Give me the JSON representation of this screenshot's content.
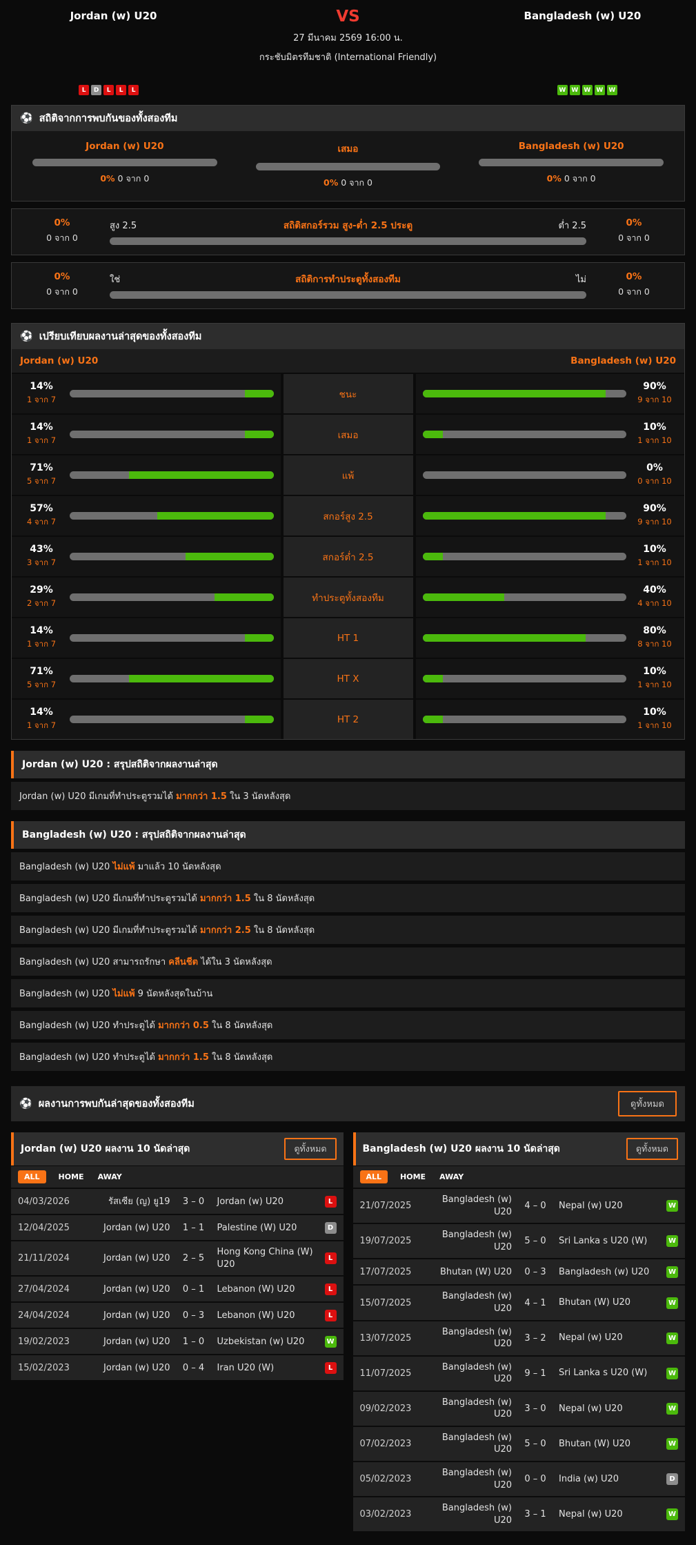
{
  "colors": {
    "accent": "#f97316",
    "win_green": "#4bb90c",
    "lose_red": "#dc1010",
    "draw_gray": "#8d8d8d",
    "vs_red": "#ef3b30",
    "bar_track_gray": "#6f6f6f"
  },
  "header": {
    "home_team": "Jordan (w) U20",
    "away_team": "Bangladesh (w) U20",
    "vs_label": "VS",
    "datetime": "27 มีนาคม 2569 16:00 น.",
    "competition": "กระชับมิตรทีมชาติ (International Friendly)",
    "home_form": [
      "L",
      "D",
      "L",
      "L",
      "L"
    ],
    "away_form": [
      "W",
      "W",
      "W",
      "W",
      "W"
    ]
  },
  "h2h_stats": {
    "title": "สถิติจากการพบกันของทั้งสองทีม",
    "columns": [
      {
        "label": "Jordan (w) U20",
        "percent": "0%",
        "fraction": "0 จาก 0",
        "fill": 0
      },
      {
        "label": "เสมอ",
        "percent": "0%",
        "fraction": "0 จาก 0",
        "fill": 0
      },
      {
        "label": "Bangladesh (w) U20",
        "percent": "0%",
        "fraction": "0 จาก 0",
        "fill": 0
      }
    ],
    "ou_row": {
      "title": "สถิติสกอร์รวม สูง-ต่ำ 2.5 ประตู",
      "left_label": "สูง 2.5",
      "right_label": "ต่ำ 2.5",
      "left_percent": "0%",
      "left_fraction": "0 จาก 0",
      "right_percent": "0%",
      "right_fraction": "0 จาก 0",
      "fill": 0
    },
    "btts_row": {
      "title": "สถิติการทำประตูทั้งสองทีม",
      "left_label": "ใช่",
      "right_label": "ไม่",
      "left_percent": "0%",
      "left_fraction": "0 จาก 0",
      "right_percent": "0%",
      "right_fraction": "0 จาก 0",
      "fill": 0
    }
  },
  "comparison": {
    "title": "เปรียบเทียบผลงานล่าสุดของทั้งสองทีม",
    "home_team": "Jordan (w) U20",
    "away_team": "Bangladesh (w) U20",
    "rows": [
      {
        "label": "ชนะ",
        "home": {
          "pct": 14,
          "pct_label": "14%",
          "frac": "1 จาก 7"
        },
        "away": {
          "pct": 90,
          "pct_label": "90%",
          "frac": "9 จาก 10"
        }
      },
      {
        "label": "เสมอ",
        "home": {
          "pct": 14,
          "pct_label": "14%",
          "frac": "1 จาก 7"
        },
        "away": {
          "pct": 10,
          "pct_label": "10%",
          "frac": "1 จาก 10"
        }
      },
      {
        "label": "แพ้",
        "home": {
          "pct": 71,
          "pct_label": "71%",
          "frac": "5 จาก 7"
        },
        "away": {
          "pct": 0,
          "pct_label": "0%",
          "frac": "0 จาก 10"
        }
      },
      {
        "label": "สกอร์สูง 2.5",
        "home": {
          "pct": 57,
          "pct_label": "57%",
          "frac": "4 จาก 7"
        },
        "away": {
          "pct": 90,
          "pct_label": "90%",
          "frac": "9 จาก 10"
        }
      },
      {
        "label": "สกอร์ต่ำ 2.5",
        "home": {
          "pct": 43,
          "pct_label": "43%",
          "frac": "3 จาก 7"
        },
        "away": {
          "pct": 10,
          "pct_label": "10%",
          "frac": "1 จาก 10"
        }
      },
      {
        "label": "ทำประตูทั้งสองทีม",
        "home": {
          "pct": 29,
          "pct_label": "29%",
          "frac": "2 จาก 7"
        },
        "away": {
          "pct": 40,
          "pct_label": "40%",
          "frac": "4 จาก 10"
        }
      },
      {
        "label": "HT 1",
        "home": {
          "pct": 14,
          "pct_label": "14%",
          "frac": "1 จาก 7"
        },
        "away": {
          "pct": 80,
          "pct_label": "80%",
          "frac": "8 จาก 10"
        }
      },
      {
        "label": "HT X",
        "home": {
          "pct": 71,
          "pct_label": "71%",
          "frac": "5 จาก 7"
        },
        "away": {
          "pct": 10,
          "pct_label": "10%",
          "frac": "1 จาก 10"
        }
      },
      {
        "label": "HT 2",
        "home": {
          "pct": 14,
          "pct_label": "14%",
          "frac": "1 จาก 7"
        },
        "away": {
          "pct": 10,
          "pct_label": "10%",
          "frac": "1 จาก 10"
        }
      }
    ]
  },
  "home_summary": {
    "title": "Jordan (w) U20 : สรุปสถิติจากผลงานล่าสุด",
    "facts": [
      [
        {
          "t": "Jordan (w) U20  มีเกมที่ทำประตูรวมได้ "
        },
        {
          "t": "มากกว่า 1.5",
          "hl": true
        },
        {
          "t": " ใน 3 นัดหลังสุด"
        }
      ]
    ]
  },
  "away_summary": {
    "title": "Bangladesh (w) U20 : สรุปสถิติจากผลงานล่าสุด",
    "facts": [
      [
        {
          "t": "Bangladesh (w) U20 "
        },
        {
          "t": "ไม่แพ้",
          "hl": true
        },
        {
          "t": " มาแล้ว 10 นัดหลังสุด"
        }
      ],
      [
        {
          "t": "Bangladesh (w) U20  มีเกมที่ทำประตูรวมได้ "
        },
        {
          "t": "มากกว่า 1.5",
          "hl": true
        },
        {
          "t": " ใน 8 นัดหลังสุด"
        }
      ],
      [
        {
          "t": "Bangladesh (w) U20  มีเกมที่ทำประตูรวมได้ "
        },
        {
          "t": "มากกว่า 2.5",
          "hl": true
        },
        {
          "t": " ใน 8 นัดหลังสุด"
        }
      ],
      [
        {
          "t": "Bangladesh (w) U20  สามารถรักษา "
        },
        {
          "t": "คลีนชีต",
          "hl": true
        },
        {
          "t": " ได้ใน 3 นัดหลังสุด"
        }
      ],
      [
        {
          "t": "Bangladesh (w) U20 "
        },
        {
          "t": "ไม่แพ้",
          "hl": true
        },
        {
          "t": " 9 นัดหลังสุดในบ้าน"
        }
      ],
      [
        {
          "t": "Bangladesh (w) U20  ทำประตูได้ "
        },
        {
          "t": "มากกว่า 0.5",
          "hl": true
        },
        {
          "t": " ใน 8 นัดหลังสุด"
        }
      ],
      [
        {
          "t": "Bangladesh (w) U20  ทำประตูได้ "
        },
        {
          "t": "มากกว่า 1.5",
          "hl": true
        },
        {
          "t": " ใน 8 นัดหลังสุด"
        }
      ]
    ]
  },
  "recent_section": {
    "title": "ผลงานการพบกันล่าสุดของทั้งสองทีม",
    "view_all": "ดูทั้งหมด"
  },
  "home_recent": {
    "title": "Jordan (w) U20 ผลงาน 10 นัดล่าสุด",
    "view_all": "ดูทั้งหมด",
    "tabs": [
      "ALL",
      "HOME",
      "AWAY"
    ],
    "active_tab": "ALL",
    "matches": [
      {
        "date": "04/03/2026",
        "home": "รัสเซีย (ญ) ยู19",
        "score": "3 – 0",
        "away": "Jordan (w) U20",
        "result": "L"
      },
      {
        "date": "12/04/2025",
        "home": "Jordan (w) U20",
        "score": "1 – 1",
        "away": "Palestine (W) U20",
        "result": "D"
      },
      {
        "date": "21/11/2024",
        "home": "Jordan (w) U20",
        "score": "2 – 5",
        "away": "Hong Kong China (W) U20",
        "result": "L"
      },
      {
        "date": "27/04/2024",
        "home": "Jordan (w) U20",
        "score": "0 – 1",
        "away": "Lebanon (W) U20",
        "result": "L"
      },
      {
        "date": "24/04/2024",
        "home": "Jordan (w) U20",
        "score": "0 – 3",
        "away": "Lebanon (W) U20",
        "result": "L"
      },
      {
        "date": "19/02/2023",
        "home": "Jordan (w) U20",
        "score": "1 – 0",
        "away": "Uzbekistan (w) U20",
        "result": "W"
      },
      {
        "date": "15/02/2023",
        "home": "Jordan (w) U20",
        "score": "0 – 4",
        "away": "Iran U20 (W)",
        "result": "L"
      }
    ]
  },
  "away_recent": {
    "title": "Bangladesh (w) U20 ผลงาน 10 นัดล่าสุด",
    "view_all": "ดูทั้งหมด",
    "tabs": [
      "ALL",
      "HOME",
      "AWAY"
    ],
    "active_tab": "ALL",
    "matches": [
      {
        "date": "21/07/2025",
        "home": "Bangladesh (w) U20",
        "score": "4 – 0",
        "away": "Nepal (w) U20",
        "result": "W"
      },
      {
        "date": "19/07/2025",
        "home": "Bangladesh (w) U20",
        "score": "5 – 0",
        "away": "Sri Lanka s U20 (W)",
        "result": "W"
      },
      {
        "date": "17/07/2025",
        "home": "Bhutan (W) U20",
        "score": "0 – 3",
        "away": "Bangladesh (w) U20",
        "result": "W"
      },
      {
        "date": "15/07/2025",
        "home": "Bangladesh (w) U20",
        "score": "4 – 1",
        "away": "Bhutan (W) U20",
        "result": "W"
      },
      {
        "date": "13/07/2025",
        "home": "Bangladesh (w) U20",
        "score": "3 – 2",
        "away": "Nepal (w) U20",
        "result": "W"
      },
      {
        "date": "11/07/2025",
        "home": "Bangladesh (w) U20",
        "score": "9 – 1",
        "away": "Sri Lanka s U20 (W)",
        "result": "W"
      },
      {
        "date": "09/02/2023",
        "home": "Bangladesh (w) U20",
        "score": "3 – 0",
        "away": "Nepal (w) U20",
        "result": "W"
      },
      {
        "date": "07/02/2023",
        "home": "Bangladesh (w) U20",
        "score": "5 – 0",
        "away": "Bhutan (W) U20",
        "result": "W"
      },
      {
        "date": "05/02/2023",
        "home": "Bangladesh (w) U20",
        "score": "0 – 0",
        "away": "India (w) U20",
        "result": "D"
      },
      {
        "date": "03/02/2023",
        "home": "Bangladesh (w) U20",
        "score": "3 – 1",
        "away": "Nepal (w) U20",
        "result": "W"
      }
    ]
  },
  "icons": {
    "section_ball": "⚽"
  }
}
